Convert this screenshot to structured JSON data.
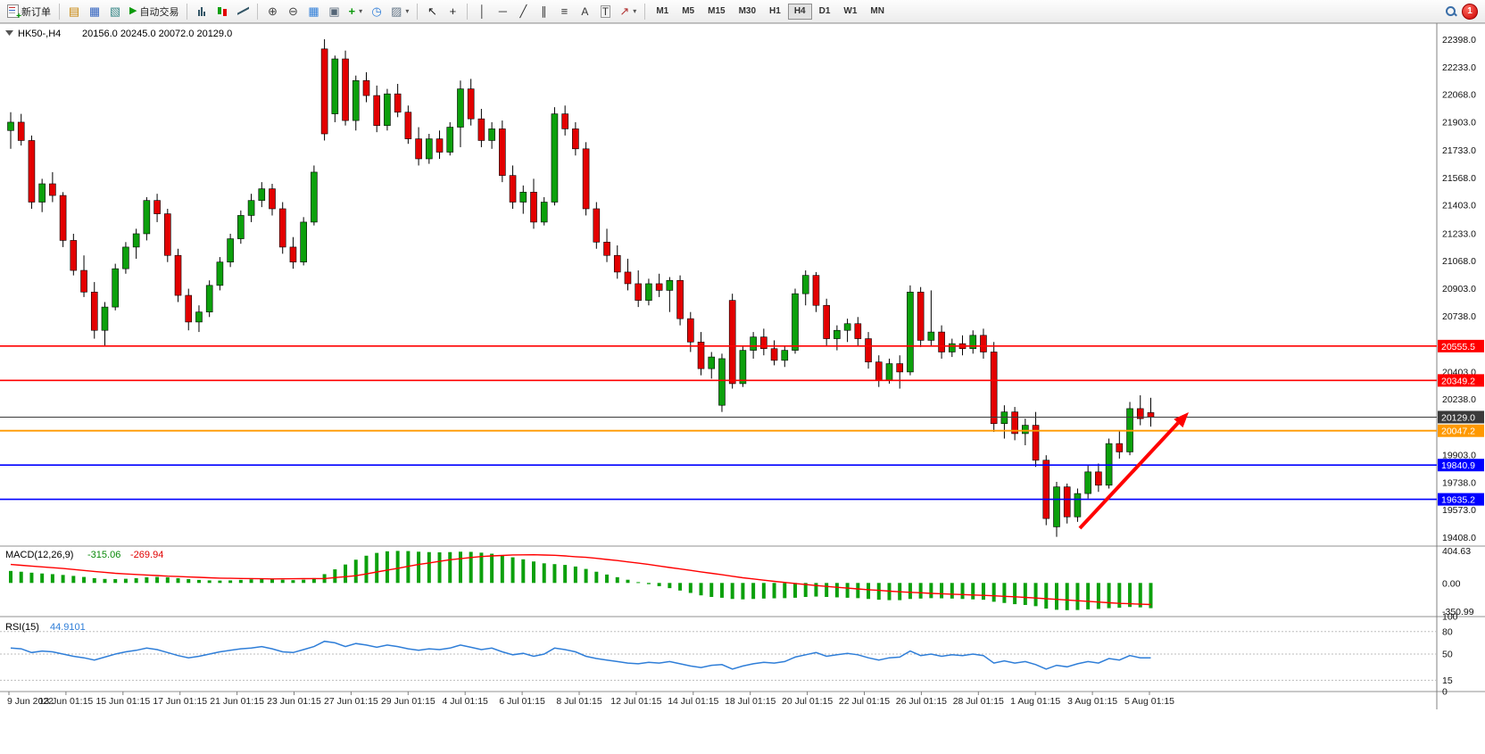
{
  "toolbar": {
    "new_order": "新订单",
    "auto_trading": "自动交易",
    "timeframes": [
      "M1",
      "M5",
      "M15",
      "M30",
      "H1",
      "H4",
      "D1",
      "W1",
      "MN"
    ],
    "active_timeframe": "H4",
    "notification_count": "1"
  },
  "icons": {
    "market_watch": "▤",
    "data_window": "▦",
    "navigator": "▧",
    "auto_play": "▶",
    "zoom_in": "⊕",
    "zoom_out": "⊖",
    "tile_windows": "▦",
    "cascade_windows": "▣",
    "new_chart": "+",
    "period": "◷",
    "snapshot": "▨",
    "cursor": "↖",
    "crosshair": "+",
    "vertical_line": "│",
    "horizontal_line": "─",
    "trendline": "╱",
    "channel": "∥",
    "fibonacci": "≡",
    "text_tool": "A",
    "label_tool": "T",
    "arrows_tool": "↗",
    "caret": "▾"
  },
  "colors": {
    "bull": "#0CA00C",
    "bear": "#E30000",
    "wick": "#000000",
    "macd_hist": "#0CA00C",
    "macd_signal": "#FF0000",
    "rsi_line": "#2F7ED8"
  },
  "chart": {
    "title": {
      "symbol": "HK50-,H4",
      "ohlc": "20156.0 20245.0 20072.0 20129.0"
    },
    "price_axis_labels": [
      22398,
      22233,
      22068,
      21903,
      21733,
      21568,
      21403,
      21233,
      21068,
      20903,
      20738,
      20403,
      20238,
      19903,
      19738,
      19573,
      19408
    ],
    "time_axis_labels": [
      "9 Jun 2022",
      "13 Jun 01:15",
      "15 Jun 01:15",
      "17 Jun 01:15",
      "21 Jun 01:15",
      "23 Jun 01:15",
      "27 Jun 01:15",
      "29 Jun 01:15",
      "4 Jul 01:15",
      "6 Jul 01:15",
      "8 Jul 01:15",
      "12 Jul 01:15",
      "14 Jul 01:15",
      "18 Jul 01:15",
      "20 Jul 01:15",
      "22 Jul 01:15",
      "26 Jul 01:15",
      "28 Jul 01:15",
      "1 Aug 01:15",
      "3 Aug 01:15",
      "5 Aug 01:15"
    ],
    "hlines": [
      {
        "price": 20555.5,
        "label": "20555.5",
        "color": "#FF0000",
        "width": 1.6,
        "type": "resistance-upper"
      },
      {
        "price": 20349.2,
        "label": "20349.2",
        "color": "#FF0000",
        "width": 1.6,
        "type": "resistance-lower"
      },
      {
        "price": 20129.0,
        "label": "20129.0",
        "color": "#3A3A3A",
        "width": 1.0,
        "type": "current-price"
      },
      {
        "price": 20047.2,
        "label": "20047.2",
        "color": "#FF9900",
        "width": 1.8,
        "type": "support-orange"
      },
      {
        "price": 19840.9,
        "label": "19840.9",
        "color": "#0000FF",
        "width": 1.6,
        "type": "support-blue-upper"
      },
      {
        "price": 19635.2,
        "label": "19635.2",
        "color": "#0000FF",
        "width": 1.6,
        "type": "support-blue-lower"
      }
    ],
    "trend_arrow": {
      "color": "#FF0000"
    }
  },
  "chart_data": {
    "type": "candlestick",
    "symbol": "HK50-",
    "timeframe": "H4",
    "ylim": [
      19408,
      22398
    ],
    "candles": [
      [
        21850,
        21960,
        21740,
        21900
      ],
      [
        21900,
        21950,
        21760,
        21790
      ],
      [
        21790,
        21820,
        21380,
        21420
      ],
      [
        21420,
        21560,
        21360,
        21530
      ],
      [
        21530,
        21600,
        21420,
        21460
      ],
      [
        21460,
        21480,
        21150,
        21190
      ],
      [
        21190,
        21230,
        20980,
        21010
      ],
      [
        21010,
        21100,
        20850,
        20880
      ],
      [
        20880,
        20940,
        20600,
        20650
      ],
      [
        20650,
        20820,
        20560,
        20790
      ],
      [
        20790,
        21050,
        20770,
        21020
      ],
      [
        21020,
        21180,
        20990,
        21150
      ],
      [
        21150,
        21260,
        21080,
        21230
      ],
      [
        21230,
        21450,
        21190,
        21430
      ],
      [
        21430,
        21470,
        21300,
        21350
      ],
      [
        21350,
        21380,
        21060,
        21100
      ],
      [
        21100,
        21140,
        20820,
        20860
      ],
      [
        20860,
        20900,
        20650,
        20700
      ],
      [
        20700,
        20800,
        20640,
        20760
      ],
      [
        20760,
        20950,
        20730,
        20920
      ],
      [
        20920,
        21090,
        20890,
        21060
      ],
      [
        21060,
        21230,
        21030,
        21200
      ],
      [
        21200,
        21370,
        21170,
        21340
      ],
      [
        21340,
        21470,
        21300,
        21430
      ],
      [
        21430,
        21540,
        21390,
        21500
      ],
      [
        21500,
        21530,
        21340,
        21380
      ],
      [
        21380,
        21420,
        21110,
        21150
      ],
      [
        21150,
        21210,
        21020,
        21060
      ],
      [
        21060,
        21330,
        21040,
        21300
      ],
      [
        21300,
        21640,
        21280,
        21600
      ],
      [
        22340,
        22398,
        21790,
        21830
      ],
      [
        21950,
        22300,
        21900,
        22280
      ],
      [
        22280,
        22330,
        21880,
        21910
      ],
      [
        21910,
        22180,
        21850,
        22150
      ],
      [
        22150,
        22200,
        22020,
        22060
      ],
      [
        22060,
        22120,
        21840,
        21880
      ],
      [
        21880,
        22100,
        21850,
        22070
      ],
      [
        22070,
        22130,
        21930,
        21960
      ],
      [
        21960,
        22000,
        21770,
        21800
      ],
      [
        21800,
        21870,
        21640,
        21680
      ],
      [
        21680,
        21830,
        21650,
        21800
      ],
      [
        21800,
        21850,
        21680,
        21720
      ],
      [
        21720,
        21900,
        21700,
        21870
      ],
      [
        21870,
        22150,
        21750,
        22100
      ],
      [
        22100,
        22160,
        21880,
        21920
      ],
      [
        21920,
        21980,
        21750,
        21790
      ],
      [
        21790,
        21900,
        21740,
        21860
      ],
      [
        21860,
        21910,
        21540,
        21580
      ],
      [
        21580,
        21640,
        21380,
        21420
      ],
      [
        21420,
        21520,
        21350,
        21480
      ],
      [
        21480,
        21560,
        21260,
        21300
      ],
      [
        21300,
        21450,
        21280,
        21420
      ],
      [
        21420,
        21990,
        21400,
        21950
      ],
      [
        21950,
        22000,
        21820,
        21860
      ],
      [
        21860,
        21900,
        21700,
        21740
      ],
      [
        21740,
        21780,
        21340,
        21380
      ],
      [
        21380,
        21420,
        21140,
        21180
      ],
      [
        21180,
        21260,
        21060,
        21100
      ],
      [
        21100,
        21160,
        20960,
        21000
      ],
      [
        21000,
        21080,
        20890,
        20930
      ],
      [
        20930,
        21010,
        20790,
        20830
      ],
      [
        20830,
        20960,
        20800,
        20930
      ],
      [
        20930,
        20990,
        20850,
        20890
      ],
      [
        20890,
        20970,
        20760,
        20950
      ],
      [
        20950,
        20980,
        20680,
        20720
      ],
      [
        20720,
        20760,
        20520,
        20580
      ],
      [
        20580,
        20640,
        20380,
        20420
      ],
      [
        20420,
        20520,
        20360,
        20490
      ],
      [
        20200,
        20510,
        20160,
        20480
      ],
      [
        20830,
        20870,
        20300,
        20330
      ],
      [
        20330,
        20560,
        20310,
        20530
      ],
      [
        20530,
        20640,
        20480,
        20610
      ],
      [
        20610,
        20660,
        20500,
        20540
      ],
      [
        20540,
        20590,
        20440,
        20470
      ],
      [
        20470,
        20560,
        20430,
        20530
      ],
      [
        20530,
        20900,
        20510,
        20870
      ],
      [
        20870,
        21010,
        20800,
        20980
      ],
      [
        20980,
        21000,
        20760,
        20800
      ],
      [
        20800,
        20840,
        20560,
        20600
      ],
      [
        20600,
        20680,
        20530,
        20650
      ],
      [
        20650,
        20720,
        20580,
        20690
      ],
      [
        20690,
        20730,
        20560,
        20600
      ],
      [
        20600,
        20640,
        20420,
        20460
      ],
      [
        20460,
        20500,
        20310,
        20350
      ],
      [
        20350,
        20480,
        20330,
        20450
      ],
      [
        20450,
        20500,
        20300,
        20400
      ],
      [
        20400,
        20920,
        20380,
        20880
      ],
      [
        20880,
        20910,
        20550,
        20590
      ],
      [
        20590,
        20890,
        20560,
        20640
      ],
      [
        20640,
        20680,
        20480,
        20520
      ],
      [
        20520,
        20600,
        20490,
        20570
      ],
      [
        20570,
        20620,
        20500,
        20540
      ],
      [
        20540,
        20650,
        20510,
        20620
      ],
      [
        20620,
        20660,
        20480,
        20520
      ],
      [
        20520,
        20580,
        20040,
        20090
      ],
      [
        20090,
        20200,
        20000,
        20160
      ],
      [
        20160,
        20190,
        19990,
        20030
      ],
      [
        20030,
        20120,
        19960,
        20080
      ],
      [
        20080,
        20160,
        19830,
        19870
      ],
      [
        19870,
        19900,
        19480,
        19520
      ],
      [
        19470,
        19740,
        19410,
        19710
      ],
      [
        19710,
        19730,
        19490,
        19530
      ],
      [
        19530,
        19700,
        19500,
        19670
      ],
      [
        19670,
        19840,
        19640,
        19800
      ],
      [
        19800,
        19850,
        19680,
        19720
      ],
      [
        19720,
        20000,
        19700,
        19970
      ],
      [
        19970,
        20050,
        19880,
        19920
      ],
      [
        19920,
        20220,
        19900,
        20180
      ],
      [
        20180,
        20260,
        20080,
        20120
      ],
      [
        20156,
        20245,
        20072,
        20129
      ]
    ],
    "macd": {
      "name": "MACD(12,26,9)",
      "value_main": "-315.06",
      "value_signal": "-269.94",
      "scale_labels": [
        "404.63",
        "0.00",
        "-350.99"
      ],
      "hist": [
        150,
        140,
        128,
        118,
        110,
        100,
        88,
        75,
        60,
        50,
        48,
        52,
        60,
        70,
        75,
        70,
        60,
        48,
        38,
        32,
        30,
        32,
        38,
        45,
        50,
        48,
        40,
        35,
        40,
        60,
        110,
        170,
        230,
        290,
        340,
        375,
        395,
        400,
        398,
        390,
        385,
        382,
        385,
        390,
        388,
        378,
        365,
        345,
        320,
        295,
        268,
        245,
        235,
        225,
        205,
        175,
        140,
        105,
        72,
        40,
        10,
        -15,
        -40,
        -65,
        -95,
        -125,
        -155,
        -175,
        -185,
        -200,
        -205,
        -200,
        -195,
        -192,
        -190,
        -185,
        -175,
        -170,
        -175,
        -180,
        -185,
        -190,
        -200,
        -210,
        -215,
        -215,
        -200,
        -195,
        -190,
        -192,
        -195,
        -200,
        -205,
        -210,
        -235,
        -250,
        -265,
        -275,
        -290,
        -320,
        -335,
        -340,
        -338,
        -330,
        -325,
        -315,
        -310,
        -300,
        -305,
        -315.06
      ],
      "signal": [
        230,
        220,
        210,
        200,
        190,
        180,
        168,
        156,
        144,
        132,
        120,
        113,
        106,
        99,
        92,
        85,
        80,
        75,
        70,
        65,
        60,
        58,
        56,
        54,
        52,
        50,
        51,
        52,
        53,
        54,
        55,
        67,
        78,
        90,
        113,
        137,
        160,
        183,
        207,
        230,
        250,
        270,
        290,
        303,
        317,
        330,
        337,
        343,
        350,
        351,
        352,
        349,
        345,
        337,
        328,
        320,
        307,
        293,
        280,
        263,
        247,
        230,
        212,
        193,
        175,
        157,
        138,
        120,
        102,
        83,
        65,
        50,
        35,
        20,
        7,
        -7,
        -20,
        -32,
        -43,
        -55,
        -65,
        -75,
        -85,
        -93,
        -102,
        -110,
        -117,
        -123,
        -130,
        -135,
        -140,
        -145,
        -150,
        -155,
        -160,
        -167,
        -173,
        -180,
        -188,
        -197,
        -205,
        -213,
        -222,
        -230,
        -238,
        -247,
        -255,
        -260,
        -265,
        -269.94
      ]
    },
    "rsi": {
      "name": "RSI(15)",
      "value": "44.9101",
      "scale_labels": [
        "100",
        "80",
        "50",
        "15",
        "0"
      ],
      "levels": [
        80,
        50,
        15
      ],
      "values": [
        58,
        57,
        52,
        54,
        53,
        50,
        47,
        45,
        42,
        46,
        50,
        53,
        55,
        58,
        56,
        52,
        48,
        45,
        47,
        50,
        53,
        55,
        57,
        58,
        60,
        57,
        53,
        52,
        56,
        60,
        67,
        65,
        60,
        64,
        62,
        59,
        62,
        60,
        57,
        55,
        57,
        56,
        58,
        62,
        59,
        56,
        58,
        53,
        49,
        51,
        47,
        50,
        58,
        56,
        53,
        47,
        44,
        42,
        40,
        38,
        37,
        39,
        38,
        40,
        37,
        34,
        32,
        35,
        36,
        30,
        34,
        37,
        39,
        38,
        40,
        46,
        49,
        52,
        47,
        49,
        51,
        49,
        45,
        42,
        45,
        46,
        54,
        48,
        50,
        47,
        49,
        48,
        50,
        48,
        38,
        41,
        38,
        40,
        36,
        30,
        35,
        33,
        37,
        40,
        38,
        44,
        42,
        48,
        45,
        44.91
      ]
    }
  }
}
